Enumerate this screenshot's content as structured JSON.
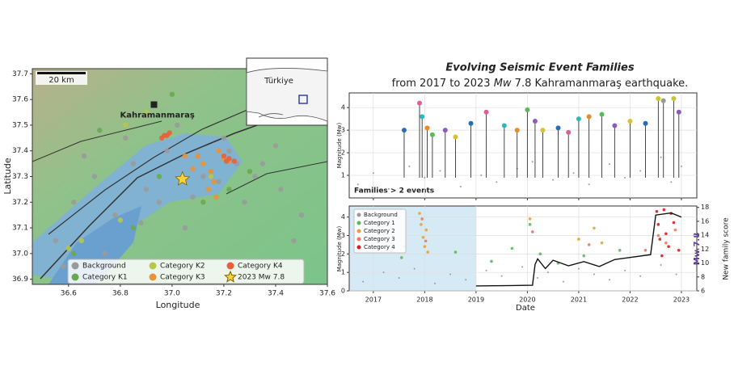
{
  "chart_data": [
    {
      "type": "scatter",
      "xlabel": "Longitude",
      "ylabel": "Latitude",
      "xlim": [
        36.46,
        37.6
      ],
      "ylim": [
        36.88,
        37.72
      ],
      "xticks": [
        36.6,
        36.8,
        {
          "value": 37.0,
          "label": "37.0"
        },
        37.2,
        37.4,
        37.6
      ],
      "yticks": [
        36.9,
        {
          "value": 37.0,
          "label": "37.0"
        },
        37.1,
        37.2,
        37.3,
        37.4,
        37.5,
        37.6,
        37.7
      ],
      "grid": false,
      "legend": "lower center",
      "city": {
        "label": "Kahramanmaraş",
        "x": 36.93,
        "y": 37.58
      },
      "scale_bar": "20 km",
      "inset_label": "Türkiye",
      "series": [
        {
          "name": "Background",
          "color": "#9a9a9a",
          "marker": "circle",
          "x": [
            36.55,
            36.62,
            36.7,
            36.78,
            36.85,
            36.9,
            36.98,
            37.05,
            37.12,
            37.2,
            37.28,
            37.35,
            37.42,
            37.5,
            36.58,
            36.66,
            36.74,
            36.82,
            36.95,
            37.02,
            37.1,
            37.18,
            37.25,
            37.32,
            37.4,
            37.47,
            36.88,
            37.08,
            37.15,
            37.22
          ],
          "values": [
            37.05,
            37.2,
            37.3,
            37.15,
            37.35,
            37.25,
            37.4,
            37.1,
            37.3,
            37.45,
            37.2,
            37.35,
            37.25,
            37.15,
            36.95,
            37.38,
            37.0,
            37.45,
            37.2,
            37.5,
            37.38,
            37.28,
            37.35,
            37.3,
            37.42,
            37.05,
            37.12,
            37.22,
            37.32,
            37.4
          ]
        },
        {
          "name": "Category K1",
          "color": "#6aa84f",
          "marker": "circle",
          "x": [
            36.72,
            36.85,
            37.0,
            37.12,
            37.3,
            36.62,
            36.95,
            37.22
          ],
          "values": [
            37.48,
            37.1,
            37.62,
            37.2,
            37.32,
            37.0,
            37.3,
            37.25
          ]
        },
        {
          "name": "Category K2",
          "color": "#b5c84a",
          "marker": "circle",
          "x": [
            36.65,
            36.8,
            36.82,
            36.9,
            37.12,
            37.15,
            36.6
          ],
          "values": [
            37.05,
            37.13,
            37.5,
            37.55,
            37.35,
            37.3,
            37.02
          ]
        },
        {
          "name": "Category K3",
          "color": "#e8923a",
          "marker": "circle",
          "x": [
            37.1,
            37.12,
            37.15,
            37.18,
            37.2,
            37.22,
            37.16,
            37.08,
            37.14,
            37.05,
            37.17
          ],
          "values": [
            37.38,
            37.35,
            37.32,
            37.4,
            37.37,
            37.36,
            37.28,
            37.33,
            37.25,
            37.38,
            37.22
          ]
        },
        {
          "name": "Category K4",
          "color": "#e8603a",
          "marker": "circle",
          "x": [
            36.97,
            36.96,
            36.99,
            37.2,
            37.22,
            37.24,
            37.21,
            36.98
          ],
          "values": [
            37.46,
            37.45,
            37.47,
            37.38,
            37.37,
            37.36,
            37.36,
            37.46
          ]
        },
        {
          "name": "2023 Mw 7.8",
          "color": "#f5d33a",
          "marker": "star",
          "x": [
            37.04
          ],
          "values": [
            37.29
          ]
        }
      ]
    },
    {
      "type": "stem",
      "title": "Evolving Seismic Event Families",
      "subtitle": [
        "from 2017 to 2023 ",
        "Mw",
        " 7.8 Kahramanmaraş  earthquake."
      ],
      "ylabel": "Magnitude (Mw)",
      "annotation": "Families > 2 events",
      "xlim": [
        2016.53,
        2023.3
      ],
      "ylim": [
        0,
        4.65
      ],
      "xticks": [
        2017,
        2018,
        2019,
        2020,
        2021,
        2022,
        2023
      ],
      "xtick_labels": false,
      "yticks": [
        1,
        2,
        3,
        4
      ],
      "grid": true,
      "series": [
        {
          "color": "#9a9a9a",
          "marker": "dot",
          "x": [
            2016.7,
            2017.0,
            2017.3,
            2017.7,
            2018.0,
            2018.3,
            2018.7,
            2019.1,
            2019.4,
            2019.8,
            2020.1,
            2020.5,
            2020.9,
            2021.2,
            2021.6,
            2021.9,
            2022.2,
            2022.6,
            2022.8,
            2023.0
          ],
          "values": [
            0.6,
            1.1,
            0.4,
            1.4,
            0.9,
            1.2,
            0.5,
            1.0,
            0.7,
            1.3,
            1.6,
            0.8,
            1.1,
            0.6,
            1.5,
            0.9,
            1.2,
            1.8,
            0.7,
            1.4
          ]
        },
        {
          "color": "#2a6db5",
          "marker": "stem",
          "colors": [
            "#2a6db5",
            "#e05c9a",
            "#2eb8b8",
            "#e88a2a",
            "#5bb85b",
            "#8e5bb8",
            "#d9c22a",
            "#2a6db5",
            "#e05c9a",
            "#2eb8b8",
            "#e88a2a",
            "#5bb85b",
            "#8e5bb8",
            "#d9c22a",
            "#2a6db5",
            "#e05c9a",
            "#2eb8b8",
            "#e88a2a",
            "#5bb85b",
            "#8e5bb8",
            "#d9c22a",
            "#2a6db5",
            "#c9c62a",
            "#9a9a9a",
            "#c9c62a",
            "#8e5bb8"
          ],
          "x": [
            2017.6,
            2017.9,
            2017.95,
            2018.05,
            2018.15,
            2018.4,
            2018.6,
            2018.9,
            2019.2,
            2019.55,
            2019.8,
            2020.0,
            2020.15,
            2020.3,
            2020.6,
            2020.8,
            2021.0,
            2021.2,
            2021.45,
            2021.7,
            2022.0,
            2022.3,
            2022.55,
            2022.65,
            2022.85,
            2022.95
          ],
          "values": [
            3.0,
            4.2,
            3.6,
            3.1,
            2.8,
            3.0,
            2.7,
            3.3,
            3.8,
            3.2,
            3.0,
            3.9,
            3.4,
            3.0,
            3.1,
            2.9,
            3.5,
            3.6,
            3.7,
            3.2,
            3.4,
            3.3,
            4.4,
            4.3,
            4.4,
            3.8
          ]
        }
      ]
    },
    {
      "type": "scatter",
      "xlabel": "Date",
      "ylabel": "Magnitude (Mw)",
      "y2label": "New family score",
      "annotation": "Mw 7.8",
      "xlim": [
        2016.53,
        2023.3
      ],
      "ylim": [
        0,
        4.6
      ],
      "y2lim": [
        6,
        18.2
      ],
      "xticks": [
        2017,
        2018,
        2019,
        2020,
        2021,
        2022,
        2023
      ],
      "yticks": [
        0,
        1,
        2,
        3,
        4
      ],
      "y2ticks": [
        6,
        8,
        10,
        12,
        14,
        16,
        18
      ],
      "grid": true,
      "legend": "upper left",
      "shade_x": [
        2016.53,
        2019.0
      ],
      "series": [
        {
          "name": "Background",
          "color": "#9a9a9a",
          "marker": "dot",
          "x": [
            2016.8,
            2017.2,
            2017.5,
            2017.8,
            2018.2,
            2018.5,
            2018.8,
            2019.2,
            2019.5,
            2019.9,
            2020.2,
            2020.4,
            2020.7,
            2021.0,
            2021.3,
            2021.6,
            2021.9,
            2022.2,
            2022.6,
            2022.9
          ],
          "values": [
            0.5,
            1.0,
            0.7,
            1.2,
            0.4,
            0.9,
            0.6,
            1.1,
            0.8,
            1.3,
            0.7,
            1.0,
            0.5,
            1.2,
            0.9,
            0.6,
            1.1,
            0.8,
            1.4,
            0.9
          ]
        },
        {
          "name": "Category 1",
          "color": "#5cb85c",
          "marker": "circle",
          "x": [
            2017.55,
            2017.6,
            2018.6,
            2019.3,
            2019.7,
            2020.05,
            2020.25,
            2020.6,
            2021.1,
            2021.8
          ],
          "values": [
            1.8,
            2.4,
            2.1,
            1.6,
            2.3,
            3.6,
            2.0,
            1.5,
            1.9,
            2.2
          ]
        },
        {
          "name": "Category 2",
          "color": "#e8a13a",
          "marker": "circle",
          "x": [
            2017.9,
            2017.93,
            2017.97,
            2018.0,
            2018.03,
            2018.06,
            2020.05,
            2021.0,
            2021.3,
            2021.45
          ],
          "values": [
            4.2,
            3.6,
            2.9,
            2.4,
            3.3,
            2.1,
            3.9,
            2.8,
            3.4,
            2.6
          ]
        },
        {
          "name": "Category 3",
          "color": "#f0785a",
          "marker": "circle",
          "x": [
            2017.95,
            2018.02,
            2020.1,
            2021.2,
            2022.3,
            2022.55,
            2022.7,
            2022.88
          ],
          "values": [
            3.9,
            2.7,
            3.2,
            2.5,
            2.2,
            3.0,
            2.6,
            3.3
          ]
        },
        {
          "name": "Category 4",
          "color": "#d62020",
          "marker": "circle",
          "x": [
            2022.52,
            2022.55,
            2022.58,
            2022.62,
            2022.66,
            2022.7,
            2022.75,
            2022.8,
            2022.85,
            2022.95
          ],
          "values": [
            4.3,
            3.6,
            2.8,
            1.9,
            4.4,
            3.1,
            2.4,
            4.2,
            3.7,
            2.2
          ]
        },
        {
          "color": "#111111",
          "marker": "line",
          "axis": "y2",
          "x": [
            2019.0,
            2020.1,
            2020.15,
            2020.2,
            2020.35,
            2020.5,
            2020.8,
            2021.1,
            2021.4,
            2021.7,
            2022.0,
            2022.4,
            2022.5,
            2022.8,
            2023.0
          ],
          "values": [
            6.7,
            6.8,
            9.8,
            10.6,
            9.2,
            10.4,
            9.6,
            10.2,
            9.5,
            10.5,
            10.8,
            11.2,
            16.9,
            17.2,
            16.6
          ]
        }
      ]
    }
  ]
}
